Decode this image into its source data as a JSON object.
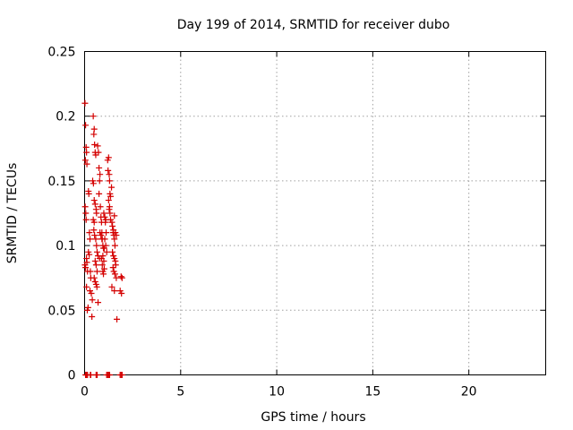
{
  "chart_data": {
    "type": "scatter",
    "title": "Day 199 of 2014, SRMTID for receiver dubo",
    "xlabel": "GPS time / hours",
    "ylabel": "SRMTID / TECUs",
    "xlim": [
      0,
      24
    ],
    "ylim": [
      0,
      0.25
    ],
    "xticks": [
      "0",
      "5",
      "10",
      "15",
      "20"
    ],
    "yticks": [
      "0",
      "0.05",
      "0.1",
      "0.15",
      "0.2",
      "0.25"
    ],
    "grid": true,
    "marker": "plus",
    "color": "#d40000",
    "series": [
      {
        "points": [
          [
            0.02,
            0.21
          ],
          [
            0.05,
            0.193
          ],
          [
            0.08,
            0.176
          ],
          [
            0.1,
            0.172
          ],
          [
            0.04,
            0.166
          ],
          [
            0.12,
            0.163
          ],
          [
            0.03,
            0.13
          ],
          [
            0.06,
            0.125
          ],
          [
            0.08,
            0.12
          ],
          [
            0.1,
            0.09
          ],
          [
            0.02,
            0.085
          ],
          [
            0.05,
            0.083
          ],
          [
            0.12,
            0.087
          ],
          [
            0.15,
            0.08
          ],
          [
            0.1,
            0.068
          ],
          [
            0.14,
            0.05
          ],
          [
            0.18,
            0.052
          ],
          [
            0.2,
            0.142
          ],
          [
            0.22,
            0.14
          ],
          [
            0.25,
            0.11
          ],
          [
            0.28,
            0.105
          ],
          [
            0.2,
            0.095
          ],
          [
            0.24,
            0.093
          ],
          [
            0.3,
            0.08
          ],
          [
            0.32,
            0.075
          ],
          [
            0.28,
            0.065
          ],
          [
            0.35,
            0.063
          ],
          [
            0.38,
            0.045
          ],
          [
            0.4,
            0.058
          ],
          [
            0.45,
            0.2
          ],
          [
            0.5,
            0.19
          ],
          [
            0.48,
            0.186
          ],
          [
            0.52,
            0.178
          ],
          [
            0.55,
            0.172
          ],
          [
            0.58,
            0.17
          ],
          [
            0.42,
            0.15
          ],
          [
            0.46,
            0.148
          ],
          [
            0.5,
            0.135
          ],
          [
            0.55,
            0.132
          ],
          [
            0.6,
            0.128
          ],
          [
            0.62,
            0.125
          ],
          [
            0.45,
            0.12
          ],
          [
            0.5,
            0.118
          ],
          [
            0.48,
            0.112
          ],
          [
            0.52,
            0.108
          ],
          [
            0.58,
            0.105
          ],
          [
            0.62,
            0.1
          ],
          [
            0.65,
            0.095
          ],
          [
            0.7,
            0.092
          ],
          [
            0.55,
            0.088
          ],
          [
            0.6,
            0.085
          ],
          [
            0.65,
            0.08
          ],
          [
            0.5,
            0.075
          ],
          [
            0.55,
            0.072
          ],
          [
            0.6,
            0.07
          ],
          [
            0.64,
            0.068
          ],
          [
            0.7,
            0.056
          ],
          [
            0.68,
            0.177
          ],
          [
            0.72,
            0.172
          ],
          [
            0.75,
            0.16
          ],
          [
            0.8,
            0.155
          ],
          [
            0.78,
            0.15
          ],
          [
            0.75,
            0.14
          ],
          [
            0.82,
            0.13
          ],
          [
            0.85,
            0.122
          ],
          [
            0.88,
            0.118
          ],
          [
            0.9,
            0.11
          ],
          [
            0.92,
            0.105
          ],
          [
            0.95,
            0.1
          ],
          [
            0.98,
            0.098
          ],
          [
            0.8,
            0.11
          ],
          [
            0.85,
            0.108
          ],
          [
            0.9,
            0.105
          ],
          [
            0.95,
            0.092
          ],
          [
            1.0,
            0.088
          ],
          [
            1.02,
            0.082
          ],
          [
            0.78,
            0.09
          ],
          [
            0.88,
            0.09
          ],
          [
            0.92,
            0.085
          ],
          [
            0.95,
            0.08
          ],
          [
            0.98,
            0.078
          ],
          [
            1.0,
            0.125
          ],
          [
            1.05,
            0.122
          ],
          [
            1.08,
            0.118
          ],
          [
            1.1,
            0.12
          ],
          [
            1.12,
            0.11
          ],
          [
            1.05,
            0.105
          ],
          [
            1.1,
            0.1
          ],
          [
            1.02,
            0.098
          ],
          [
            1.15,
            0.095
          ],
          [
            1.2,
            0.166
          ],
          [
            1.25,
            0.168
          ],
          [
            1.22,
            0.158
          ],
          [
            1.28,
            0.155
          ],
          [
            1.3,
            0.15
          ],
          [
            1.32,
            0.14
          ],
          [
            1.35,
            0.138
          ],
          [
            1.25,
            0.135
          ],
          [
            1.3,
            0.13
          ],
          [
            1.28,
            0.128
          ],
          [
            1.32,
            0.125
          ],
          [
            1.35,
            0.12
          ],
          [
            1.4,
            0.145
          ],
          [
            1.42,
            0.118
          ],
          [
            1.45,
            0.115
          ],
          [
            1.48,
            0.11
          ],
          [
            1.5,
            0.112
          ],
          [
            1.52,
            0.108
          ],
          [
            1.55,
            0.105
          ],
          [
            1.58,
            0.1
          ],
          [
            1.45,
            0.095
          ],
          [
            1.5,
            0.092
          ],
          [
            1.55,
            0.09
          ],
          [
            1.6,
            0.088
          ],
          [
            1.62,
            0.085
          ],
          [
            1.48,
            0.083
          ],
          [
            1.52,
            0.08
          ],
          [
            1.58,
            0.078
          ],
          [
            1.65,
            0.075
          ],
          [
            1.55,
            0.123
          ],
          [
            1.6,
            0.11
          ],
          [
            1.65,
            0.108
          ],
          [
            1.42,
            0.068
          ],
          [
            1.55,
            0.065
          ],
          [
            1.68,
            0.043
          ],
          [
            1.9,
            0.076
          ],
          [
            1.95,
            0.075
          ],
          [
            1.85,
            0.065
          ],
          [
            1.92,
            0.063
          ],
          [
            0.05,
            0.0
          ],
          [
            0.1,
            0.0
          ],
          [
            0.15,
            0.0
          ],
          [
            0.3,
            0.0
          ],
          [
            0.32,
            0.0
          ],
          [
            0.6,
            0.0
          ],
          [
            0.65,
            0.0
          ],
          [
            1.15,
            0.0
          ],
          [
            1.2,
            0.0
          ],
          [
            1.25,
            0.0
          ],
          [
            1.3,
            0.0
          ],
          [
            1.85,
            0.0
          ],
          [
            1.9,
            0.0
          ],
          [
            1.95,
            0.0
          ]
        ]
      }
    ]
  }
}
